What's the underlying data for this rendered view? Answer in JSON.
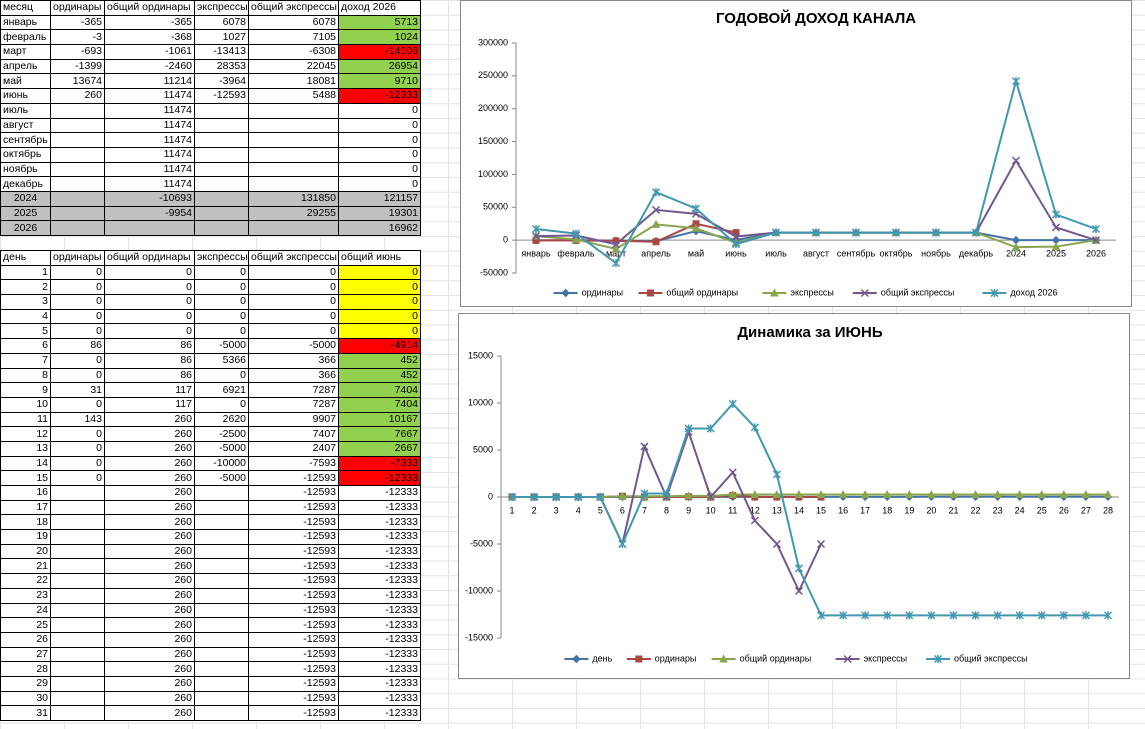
{
  "monthly_table": {
    "header": [
      "месяц",
      "ординары",
      "общий ординары",
      "экспрессы",
      "общий экспрессы",
      "доход 2026"
    ],
    "rows": [
      [
        "январь",
        -365,
        -365,
        6078,
        6078,
        5713
      ],
      [
        "февраль",
        -3,
        -368,
        1027,
        7105,
        1024
      ],
      [
        "март",
        -693,
        -1061,
        -13413,
        -6308,
        -14106
      ],
      [
        "апрель",
        -1399,
        -2460,
        28353,
        22045,
        26954
      ],
      [
        "май",
        13674,
        11214,
        -3964,
        18081,
        9710
      ],
      [
        "июнь",
        260,
        11474,
        -12593,
        5488,
        -12333
      ],
      [
        "июль",
        null,
        11474,
        null,
        null,
        0
      ],
      [
        "август",
        null,
        11474,
        null,
        null,
        0
      ],
      [
        "сентябрь",
        null,
        11474,
        null,
        null,
        0
      ],
      [
        "октябрь",
        null,
        11474,
        null,
        null,
        0
      ],
      [
        "ноябрь",
        null,
        11474,
        null,
        null,
        0
      ],
      [
        "декабрь",
        null,
        11474,
        null,
        null,
        0
      ],
      [
        "2024",
        null,
        -10693,
        null,
        131850,
        121157
      ],
      [
        "2025",
        null,
        -9954,
        null,
        29255,
        19301
      ],
      [
        "2026",
        null,
        null,
        null,
        null,
        16962
      ]
    ],
    "row_fill": [
      null,
      null,
      null,
      null,
      null,
      null,
      null,
      null,
      null,
      null,
      null,
      null,
      "#c0c0c0",
      "#c0c0c0",
      "#c0c0c0"
    ],
    "last_fill": [
      "#92d050",
      "#92d050",
      "#ff0000",
      "#92d050",
      "#92d050",
      "#ff0000",
      null,
      null,
      null,
      null,
      null,
      null,
      "#c0c0c0",
      "#c0c0c0",
      "#c0c0c0"
    ]
  },
  "daily_table": {
    "header": [
      "день",
      "ординары",
      "общий ординары",
      "экспрессы",
      "общий экспрессы",
      "общий июнь"
    ],
    "rows": [
      [
        1,
        0,
        0,
        0,
        0,
        0
      ],
      [
        2,
        0,
        0,
        0,
        0,
        0
      ],
      [
        3,
        0,
        0,
        0,
        0,
        0
      ],
      [
        4,
        0,
        0,
        0,
        0,
        0
      ],
      [
        5,
        0,
        0,
        0,
        0,
        0
      ],
      [
        6,
        86,
        86,
        -5000,
        -5000,
        -4914
      ],
      [
        7,
        0,
        86,
        5366,
        366,
        452
      ],
      [
        8,
        0,
        86,
        0,
        366,
        452
      ],
      [
        9,
        31,
        117,
        6921,
        7287,
        7404
      ],
      [
        10,
        0,
        117,
        0,
        7287,
        7404
      ],
      [
        11,
        143,
        260,
        2620,
        9907,
        10167
      ],
      [
        12,
        0,
        260,
        -2500,
        7407,
        7667
      ],
      [
        13,
        0,
        260,
        -5000,
        2407,
        2667
      ],
      [
        14,
        0,
        260,
        -10000,
        -7593,
        -7333
      ],
      [
        15,
        0,
        260,
        -5000,
        -12593,
        -12333
      ],
      [
        16,
        null,
        260,
        null,
        -12593,
        -12333
      ],
      [
        17,
        null,
        260,
        null,
        -12593,
        -12333
      ],
      [
        18,
        null,
        260,
        null,
        -12593,
        -12333
      ],
      [
        19,
        null,
        260,
        null,
        -12593,
        -12333
      ],
      [
        20,
        null,
        260,
        null,
        -12593,
        -12333
      ],
      [
        21,
        null,
        260,
        null,
        -12593,
        -12333
      ],
      [
        22,
        null,
        260,
        null,
        -12593,
        -12333
      ],
      [
        23,
        null,
        260,
        null,
        -12593,
        -12333
      ],
      [
        24,
        null,
        260,
        null,
        -12593,
        -12333
      ],
      [
        25,
        null,
        260,
        null,
        -12593,
        -12333
      ],
      [
        26,
        null,
        260,
        null,
        -12593,
        -12333
      ],
      [
        27,
        null,
        260,
        null,
        -12593,
        -12333
      ],
      [
        28,
        null,
        260,
        null,
        -12593,
        -12333
      ],
      [
        29,
        null,
        260,
        null,
        -12593,
        -12333
      ],
      [
        30,
        null,
        260,
        null,
        -12593,
        -12333
      ],
      [
        31,
        null,
        260,
        null,
        -12593,
        -12333
      ]
    ],
    "last_fill": [
      "#ffff00",
      "#ffff00",
      "#ffff00",
      "#ffff00",
      "#ffff00",
      "#ff0000",
      "#92d050",
      "#92d050",
      "#92d050",
      "#92d050",
      "#92d050",
      "#92d050",
      "#92d050",
      "#ff0000",
      "#ff0000",
      null,
      null,
      null,
      null,
      null,
      null,
      null,
      null,
      null,
      null,
      null,
      null,
      null,
      null,
      null,
      null
    ]
  },
  "chart_data": [
    {
      "type": "line",
      "title": "ГОДОВОЙ ДОХОД КАНАЛА",
      "categories": [
        "январь",
        "февраль",
        "март",
        "апрель",
        "май",
        "июнь",
        "июль",
        "август",
        "сентябрь",
        "октябрь",
        "ноябрь",
        "декабрь",
        "2024",
        "2025",
        "2026"
      ],
      "ylim": [
        -50000,
        300000
      ],
      "yticks": [
        -50000,
        0,
        50000,
        100000,
        150000,
        200000,
        250000,
        300000
      ],
      "series": [
        {
          "name": "ординары",
          "color": "#4572a7",
          "marker": "diamond",
          "values": [
            -365,
            -3,
            -693,
            -1399,
            13674,
            260,
            11474,
            11474,
            11474,
            11474,
            11474,
            11474,
            0,
            0,
            0
          ]
        },
        {
          "name": "общий  ординары",
          "color": "#aa4643",
          "marker": "square",
          "values": [
            -365,
            -368,
            -1061,
            -2460,
            24888,
            11474,
            null,
            null,
            null,
            null,
            null,
            null,
            null,
            null,
            null
          ]
        },
        {
          "name": "экспрессы",
          "color": "#89a54e",
          "marker": "triangle",
          "values": [
            6078,
            1027,
            -13413,
            24000,
            18000,
            -4000,
            11474,
            11474,
            11474,
            11474,
            11474,
            11474,
            -10693,
            -9954,
            0
          ]
        },
        {
          "name": "общий  экспрессы",
          "color": "#71588f",
          "marker": "x",
          "values": [
            6078,
            7105,
            -6308,
            46000,
            40000,
            5488,
            11474,
            11474,
            11474,
            11474,
            11474,
            11474,
            121157,
            19301,
            0
          ]
        },
        {
          "name": "доход 2026",
          "color": "#4198af",
          "marker": "star",
          "values": [
            17000,
            10000,
            -35000,
            73000,
            48000,
            -6000,
            11474,
            11474,
            11474,
            11474,
            11474,
            11474,
            242000,
            39000,
            17000
          ]
        }
      ]
    },
    {
      "type": "line",
      "title": "Динамика за ИЮНЬ",
      "categories": [
        "1",
        "2",
        "3",
        "4",
        "5",
        "6",
        "7",
        "8",
        "9",
        "10",
        "11",
        "12",
        "13",
        "14",
        "15",
        "16",
        "17",
        "18",
        "19",
        "20",
        "21",
        "22",
        "23",
        "24",
        "25",
        "26",
        "27",
        "28"
      ],
      "ylim": [
        -15000,
        15000
      ],
      "yticks": [
        -15000,
        -10000,
        -5000,
        0,
        5000,
        10000,
        15000
      ],
      "series": [
        {
          "name": "день",
          "color": "#4572a7",
          "marker": "diamond",
          "values": [
            1,
            2,
            3,
            4,
            5,
            6,
            7,
            8,
            9,
            10,
            11,
            12,
            13,
            14,
            15,
            16,
            17,
            18,
            19,
            20,
            21,
            22,
            23,
            24,
            25,
            26,
            27,
            28
          ]
        },
        {
          "name": "ординары",
          "color": "#aa4643",
          "marker": "square",
          "values": [
            0,
            0,
            0,
            0,
            0,
            86,
            0,
            0,
            31,
            0,
            143,
            0,
            0,
            0,
            0,
            null,
            null,
            null,
            null,
            null,
            null,
            null,
            null,
            null,
            null,
            null,
            null,
            null
          ]
        },
        {
          "name": "общий  ординары",
          "color": "#89a54e",
          "marker": "triangle",
          "values": [
            0,
            0,
            0,
            0,
            0,
            86,
            86,
            86,
            117,
            117,
            260,
            260,
            260,
            260,
            260,
            260,
            260,
            260,
            260,
            260,
            260,
            260,
            260,
            260,
            260,
            260,
            260,
            260
          ]
        },
        {
          "name": "экспрессы",
          "color": "#71588f",
          "marker": "x",
          "values": [
            0,
            0,
            0,
            0,
            0,
            -5000,
            5366,
            0,
            6921,
            0,
            2620,
            -2500,
            -5000,
            -10000,
            -5000,
            null,
            null,
            null,
            null,
            null,
            null,
            null,
            null,
            null,
            null,
            null,
            null,
            null
          ]
        },
        {
          "name": "общий  экспрессы",
          "color": "#4198af",
          "marker": "star",
          "values": [
            0,
            0,
            0,
            0,
            0,
            -5000,
            366,
            366,
            7287,
            7287,
            9907,
            7407,
            2407,
            -7593,
            -12593,
            -12593,
            -12593,
            -12593,
            -12593,
            -12593,
            -12593,
            -12593,
            -12593,
            -12593,
            -12593,
            -12593,
            -12593,
            -12593
          ]
        }
      ]
    }
  ]
}
